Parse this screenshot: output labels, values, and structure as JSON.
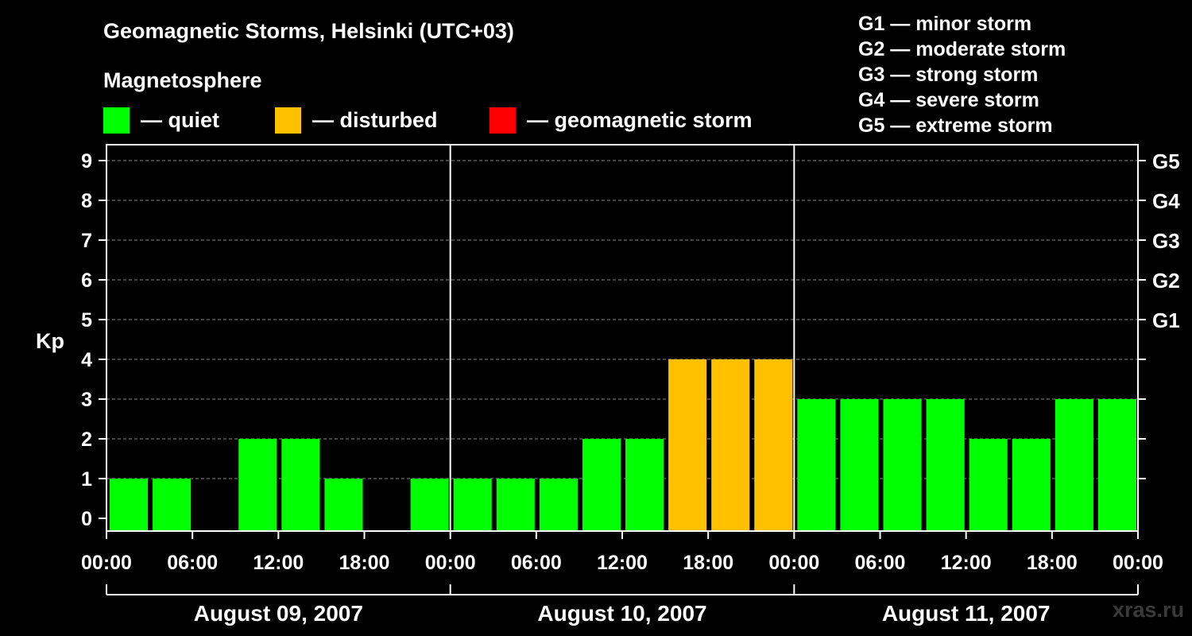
{
  "chart_data": {
    "type": "bar",
    "title": "Geomagnetic Storms, Helsinki (UTC+03)",
    "ylabel": "Kp",
    "ylim": [
      0,
      9
    ],
    "yticks": [
      "0",
      "1",
      "2",
      "3",
      "4",
      "5",
      "6",
      "7",
      "8",
      "9"
    ],
    "grid": true,
    "g_ticks": [
      {
        "label": "G1",
        "kp": 5
      },
      {
        "label": "G2",
        "kp": 6
      },
      {
        "label": "G3",
        "kp": 7
      },
      {
        "label": "G4",
        "kp": 8
      },
      {
        "label": "G5",
        "kp": 9
      }
    ],
    "x_tick_labels": [
      "00:00",
      "06:00",
      "12:00",
      "18:00",
      "00:00",
      "06:00",
      "12:00",
      "18:00",
      "00:00",
      "06:00",
      "12:00",
      "18:00",
      "00:00"
    ],
    "days": [
      "August 09, 2007",
      "August 10, 2007",
      "August 11, 2007"
    ],
    "values": [
      1,
      1,
      0,
      2,
      2,
      1,
      0,
      1,
      1,
      1,
      1,
      2,
      2,
      4,
      4,
      4,
      3,
      3,
      3,
      3,
      2,
      2,
      3,
      3
    ],
    "status_colors": {
      "quiet": "#00ff00",
      "disturbed": "#ffc000",
      "storm": "#ff0000"
    }
  },
  "legend": {
    "title": "Magnetosphere",
    "items": [
      {
        "label": "— quiet",
        "color": "#00ff00"
      },
      {
        "label": "— disturbed",
        "color": "#ffc000"
      },
      {
        "label": "— geomagnetic storm",
        "color": "#ff0000"
      }
    ]
  },
  "g_legend": [
    "G1 — minor storm",
    "G2 — moderate storm",
    "G3 — strong storm",
    "G4 — severe storm",
    "G5 — extreme storm"
  ],
  "watermark": "xras.ru"
}
